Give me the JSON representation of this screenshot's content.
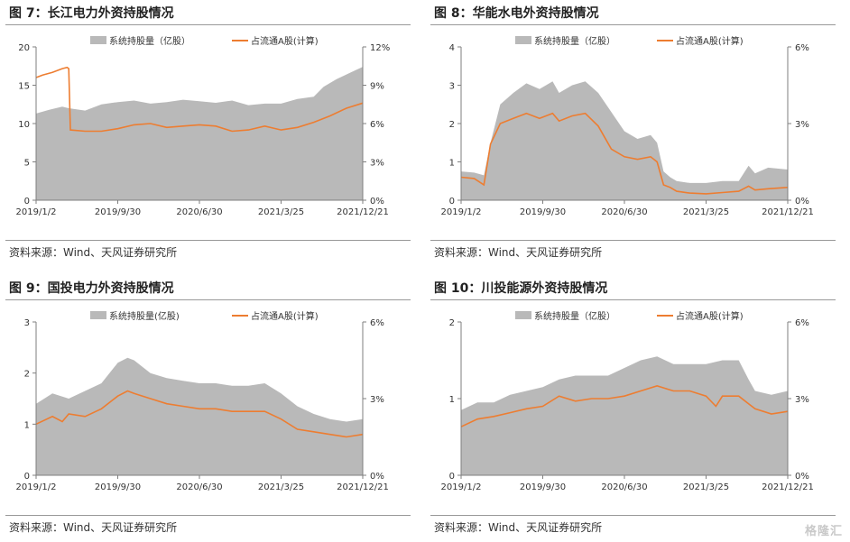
{
  "source_text": "资料来源：Wind、天风证券研究所",
  "watermark": "格隆汇",
  "colors": {
    "area": "#b9b9b9",
    "line": "#ed7d31",
    "axis": "#7f7f7f"
  },
  "chart_data": [
    {
      "title": "图 7：长江电力外资持股情况",
      "type": "area",
      "legend": [
        "系统持股量（亿股）",
        "占流通A股(计算)"
      ],
      "x_ticks": [
        "2019/1/2",
        "2019/9/30",
        "2020/6/30",
        "2021/3/25",
        "2021/12/21"
      ],
      "y_left": {
        "range": [
          0,
          20
        ],
        "ticks": [
          "0",
          "5",
          "10",
          "15",
          "20"
        ]
      },
      "y_right": {
        "range": [
          0,
          12
        ],
        "ticks": [
          "0%",
          "3%",
          "6%",
          "9%",
          "12%"
        ]
      },
      "series": [
        {
          "name": "系统持股量（亿股）",
          "kind": "area",
          "axis": "left",
          "x": [
            0,
            0.04,
            0.08,
            0.1,
            0.15,
            0.2,
            0.25,
            0.3,
            0.35,
            0.4,
            0.45,
            0.5,
            0.55,
            0.6,
            0.65,
            0.7,
            0.75,
            0.8,
            0.85,
            0.88,
            0.92,
            0.96,
            1.0
          ],
          "y": [
            11.3,
            11.8,
            12.2,
            12.0,
            11.7,
            12.5,
            12.8,
            13.0,
            12.6,
            12.8,
            13.1,
            12.9,
            12.7,
            13.0,
            12.4,
            12.6,
            12.6,
            13.2,
            13.5,
            14.8,
            15.8,
            16.6,
            17.4
          ]
        },
        {
          "name": "占流通A股(计算)",
          "kind": "line",
          "axis": "right",
          "x": [
            0,
            0.02,
            0.05,
            0.08,
            0.095,
            0.1,
            0.105,
            0.15,
            0.2,
            0.25,
            0.3,
            0.35,
            0.4,
            0.45,
            0.5,
            0.55,
            0.6,
            0.65,
            0.7,
            0.75,
            0.8,
            0.85,
            0.9,
            0.95,
            1.0
          ],
          "y": [
            9.6,
            9.8,
            10.0,
            10.3,
            10.4,
            10.3,
            5.5,
            5.4,
            5.4,
            5.6,
            5.9,
            6.0,
            5.7,
            5.8,
            5.9,
            5.8,
            5.4,
            5.5,
            5.8,
            5.5,
            5.7,
            6.1,
            6.6,
            7.2,
            7.6
          ]
        }
      ]
    },
    {
      "title": "图 8：华能水电外资持股情况",
      "type": "area",
      "legend": [
        "系统持股量（亿股）",
        "占流通A股(计算)"
      ],
      "x_ticks": [
        "2019/1/2",
        "2019/9/30",
        "2020/6/30",
        "2021/3/25",
        "2021/12/21"
      ],
      "y_left": {
        "range": [
          0,
          4
        ],
        "ticks": [
          "0",
          "1",
          "2",
          "3",
          "4"
        ]
      },
      "y_right": {
        "range": [
          0,
          6
        ],
        "ticks": [
          "0%",
          "3%",
          "6%"
        ]
      },
      "series": [
        {
          "name": "系统持股量（亿股）",
          "kind": "area",
          "axis": "left",
          "x": [
            0,
            0.04,
            0.07,
            0.09,
            0.12,
            0.16,
            0.2,
            0.24,
            0.28,
            0.3,
            0.34,
            0.38,
            0.42,
            0.46,
            0.5,
            0.54,
            0.58,
            0.6,
            0.62,
            0.64,
            0.66,
            0.7,
            0.75,
            0.8,
            0.85,
            0.88,
            0.9,
            0.94,
            1.0
          ],
          "y": [
            0.75,
            0.72,
            0.65,
            1.5,
            2.5,
            2.8,
            3.05,
            2.9,
            3.1,
            2.8,
            3.0,
            3.1,
            2.8,
            2.3,
            1.8,
            1.6,
            1.7,
            1.5,
            0.75,
            0.6,
            0.5,
            0.45,
            0.45,
            0.5,
            0.5,
            0.9,
            0.7,
            0.85,
            0.8
          ]
        },
        {
          "name": "占流通A股(计算)",
          "kind": "line",
          "axis": "right",
          "x": [
            0,
            0.04,
            0.07,
            0.09,
            0.12,
            0.16,
            0.2,
            0.24,
            0.28,
            0.3,
            0.34,
            0.38,
            0.42,
            0.46,
            0.5,
            0.54,
            0.58,
            0.6,
            0.62,
            0.64,
            0.66,
            0.7,
            0.75,
            0.8,
            0.85,
            0.88,
            0.9,
            0.94,
            1.0
          ],
          "y": [
            0.9,
            0.85,
            0.6,
            2.2,
            3.0,
            3.2,
            3.4,
            3.2,
            3.4,
            3.1,
            3.3,
            3.4,
            2.9,
            2.0,
            1.7,
            1.6,
            1.7,
            1.5,
            0.6,
            0.5,
            0.35,
            0.28,
            0.25,
            0.3,
            0.35,
            0.55,
            0.4,
            0.45,
            0.5
          ]
        }
      ]
    },
    {
      "title": "图 9：国投电力外资持股情况",
      "type": "area",
      "legend": [
        "系统持股量(亿股)",
        "占流通A股(计算)"
      ],
      "x_ticks": [
        "2019/1/2",
        "2019/9/30",
        "2020/6/30",
        "2021/3/25",
        "2021/12/21"
      ],
      "y_left": {
        "range": [
          0,
          3
        ],
        "ticks": [
          "0",
          "1",
          "2",
          "3"
        ]
      },
      "y_right": {
        "range": [
          0,
          6
        ],
        "ticks": [
          "0%",
          "3%",
          "6%"
        ]
      },
      "series": [
        {
          "name": "系统持股量(亿股)",
          "kind": "area",
          "axis": "left",
          "x": [
            0,
            0.05,
            0.1,
            0.15,
            0.2,
            0.25,
            0.28,
            0.3,
            0.35,
            0.4,
            0.45,
            0.5,
            0.55,
            0.6,
            0.65,
            0.7,
            0.75,
            0.8,
            0.85,
            0.9,
            0.95,
            1.0
          ],
          "y": [
            1.4,
            1.6,
            1.5,
            1.65,
            1.8,
            2.2,
            2.3,
            2.25,
            2.0,
            1.9,
            1.85,
            1.8,
            1.8,
            1.75,
            1.75,
            1.8,
            1.6,
            1.35,
            1.2,
            1.1,
            1.05,
            1.1
          ]
        },
        {
          "name": "占流通A股(计算)",
          "kind": "line",
          "axis": "right",
          "x": [
            0,
            0.05,
            0.08,
            0.1,
            0.15,
            0.2,
            0.25,
            0.28,
            0.3,
            0.35,
            0.4,
            0.45,
            0.5,
            0.55,
            0.6,
            0.65,
            0.7,
            0.75,
            0.8,
            0.85,
            0.9,
            0.95,
            1.0
          ],
          "y": [
            2.0,
            2.3,
            2.1,
            2.4,
            2.3,
            2.6,
            3.1,
            3.3,
            3.2,
            3.0,
            2.8,
            2.7,
            2.6,
            2.6,
            2.5,
            2.5,
            2.5,
            2.2,
            1.8,
            1.7,
            1.6,
            1.5,
            1.6
          ]
        }
      ]
    },
    {
      "title": "图 10：川投能源外资持股情况",
      "type": "area",
      "legend": [
        "系统持股量（亿股）",
        "占流通A股(计算)"
      ],
      "x_ticks": [
        "2019/1/2",
        "2019/9/30",
        "2020/6/30",
        "2021/3/25",
        "2021/12/21"
      ],
      "y_left": {
        "range": [
          0,
          2
        ],
        "ticks": [
          "0",
          "1",
          "2"
        ]
      },
      "y_right": {
        "range": [
          0,
          6
        ],
        "ticks": [
          "0%",
          "3%",
          "6%"
        ]
      },
      "series": [
        {
          "name": "系统持股量（亿股）",
          "kind": "area",
          "axis": "left",
          "x": [
            0,
            0.05,
            0.1,
            0.15,
            0.2,
            0.25,
            0.3,
            0.35,
            0.4,
            0.45,
            0.5,
            0.55,
            0.6,
            0.65,
            0.7,
            0.75,
            0.8,
            0.85,
            0.88,
            0.9,
            0.95,
            1.0
          ],
          "y": [
            0.85,
            0.95,
            0.95,
            1.05,
            1.1,
            1.15,
            1.25,
            1.3,
            1.3,
            1.3,
            1.4,
            1.5,
            1.55,
            1.45,
            1.45,
            1.45,
            1.5,
            1.5,
            1.25,
            1.1,
            1.05,
            1.1
          ]
        },
        {
          "name": "占流通A股(计算)",
          "kind": "line",
          "axis": "right",
          "x": [
            0,
            0.05,
            0.1,
            0.15,
            0.2,
            0.25,
            0.3,
            0.35,
            0.4,
            0.45,
            0.5,
            0.55,
            0.6,
            0.65,
            0.7,
            0.75,
            0.78,
            0.8,
            0.85,
            0.88,
            0.9,
            0.95,
            1.0
          ],
          "y": [
            1.9,
            2.2,
            2.3,
            2.45,
            2.6,
            2.7,
            3.1,
            2.9,
            3.0,
            3.0,
            3.1,
            3.3,
            3.5,
            3.3,
            3.3,
            3.1,
            2.7,
            3.1,
            3.1,
            2.8,
            2.6,
            2.4,
            2.5
          ]
        }
      ]
    }
  ]
}
